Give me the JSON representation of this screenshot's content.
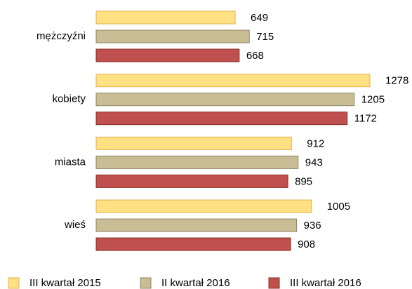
{
  "chart_data": {
    "type": "bar",
    "orientation": "horizontal",
    "categories": [
      "mężczyźni",
      "kobiety",
      "miasta",
      "wieś"
    ],
    "series": [
      {
        "name": "III kwartał 2015",
        "color": "#ffe184",
        "values": [
          649,
          1278,
          912,
          1005
        ]
      },
      {
        "name": "II kwartał 2016",
        "color": "#c9bd96",
        "values": [
          715,
          1205,
          943,
          936
        ]
      },
      {
        "name": "III kwartał 2016",
        "color": "#c0504d",
        "values": [
          668,
          1172,
          895,
          908
        ]
      }
    ],
    "legend": "bottom"
  }
}
